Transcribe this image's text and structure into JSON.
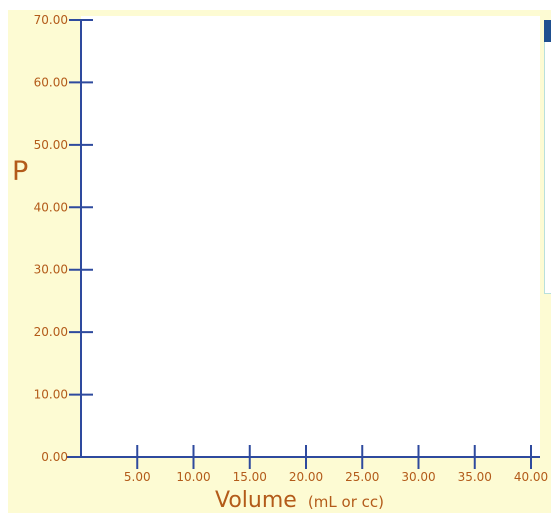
{
  "graph": {
    "y_label": "P",
    "x_label": "Volume",
    "x_unit": "(mL or cc)",
    "colors": {
      "panel_background": "#fdfbd3",
      "plot_background": "#ffffff",
      "axis": "#2e4a9e",
      "label_text": "#b35b1a"
    }
  },
  "chart_data": {
    "type": "line",
    "xlabel": "Volume (mL or cc)",
    "ylabel": "P",
    "xlim": [
      0,
      40
    ],
    "ylim": [
      0,
      70
    ],
    "x_ticks": [
      "5.00",
      "10.00",
      "15.00",
      "20.00",
      "25.00",
      "30.00",
      "35.00",
      "40.00"
    ],
    "y_ticks": [
      "0.00",
      "10.00",
      "20.00",
      "30.00",
      "40.00",
      "50.00",
      "60.00",
      "70.00"
    ],
    "series": [],
    "grid": false
  }
}
